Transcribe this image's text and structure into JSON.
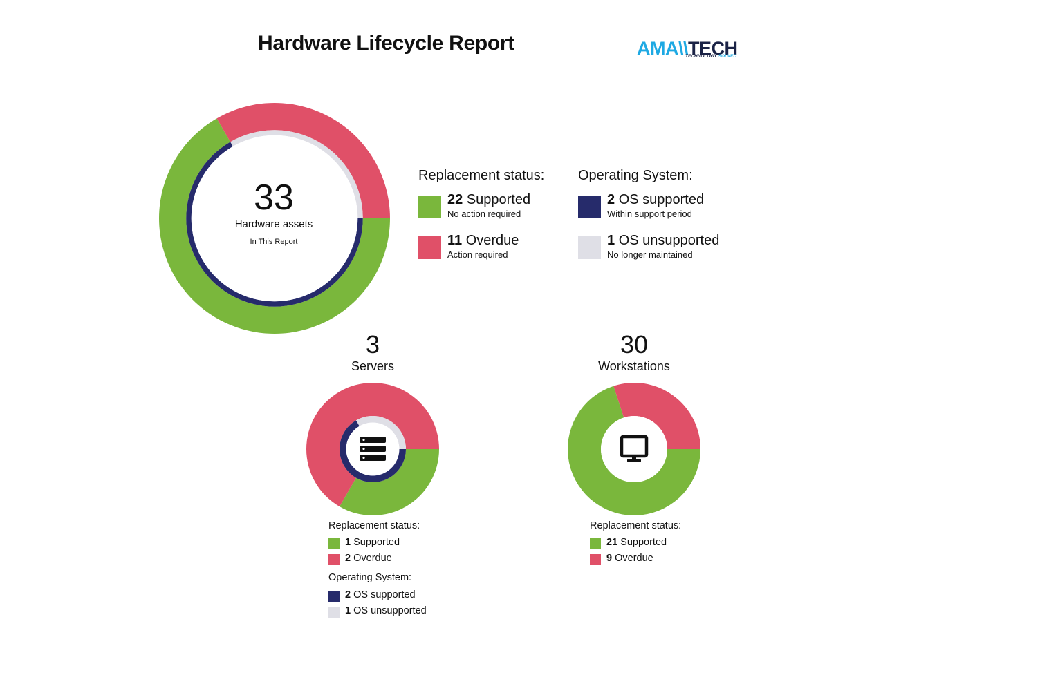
{
  "header": {
    "title": "Hardware Lifecycle Report",
    "logo": {
      "part1": "AMA\\\\",
      "part2": "TECH",
      "tagline_part1": "TECHNOLOGY",
      "tagline_part2": "SOLVED"
    }
  },
  "colors": {
    "supported": "#7ab73c",
    "overdue": "#e05068",
    "os_supported": "#262b6b",
    "os_unsupported": "#dfdfe6"
  },
  "chart_data": [
    {
      "type": "pie",
      "id": "overall",
      "center_value": "33",
      "center_label": "Hardware assets",
      "center_sublabel": "In This Report",
      "rings": [
        {
          "name": "Replacement status",
          "slices": [
            {
              "label": "Supported",
              "value": 22
            },
            {
              "label": "Overdue",
              "value": 11
            }
          ]
        },
        {
          "name": "Operating System",
          "slices": [
            {
              "label": "OS supported",
              "value": 2
            },
            {
              "label": "OS unsupported",
              "value": 1
            }
          ]
        }
      ]
    },
    {
      "type": "pie",
      "id": "servers",
      "count": "3",
      "label": "Servers",
      "icon": "server-icon",
      "rings": [
        {
          "name": "Replacement status",
          "slices": [
            {
              "label": "Supported",
              "value": 1
            },
            {
              "label": "Overdue",
              "value": 2
            }
          ]
        },
        {
          "name": "Operating System",
          "slices": [
            {
              "label": "OS supported",
              "value": 2
            },
            {
              "label": "OS unsupported",
              "value": 1
            }
          ]
        }
      ]
    },
    {
      "type": "pie",
      "id": "workstations",
      "count": "30",
      "label": "Workstations",
      "icon": "monitor-icon",
      "rings": [
        {
          "name": "Replacement status",
          "slices": [
            {
              "label": "Supported",
              "value": 21
            },
            {
              "label": "Overdue",
              "value": 9
            }
          ]
        }
      ]
    }
  ],
  "legend": {
    "replacement_heading": "Replacement status:",
    "os_heading": "Operating System:",
    "supported": {
      "count": "22",
      "label": "Supported",
      "desc": "No action required"
    },
    "overdue": {
      "count": "11",
      "label": "Overdue",
      "desc": "Action required"
    },
    "os_supported": {
      "count": "2",
      "label": "OS supported",
      "desc": "Within support period"
    },
    "os_unsupported": {
      "count": "1",
      "label": "OS unsupported",
      "desc": "No longer maintained"
    }
  },
  "servers_legend": {
    "replacement_heading": "Replacement status:",
    "supported": {
      "count": "1",
      "label": "Supported"
    },
    "overdue": {
      "count": "2",
      "label": "Overdue"
    },
    "os_heading": "Operating System:",
    "os_supported": {
      "count": "2",
      "label": "OS supported"
    },
    "os_unsupported": {
      "count": "1",
      "label": "OS unsupported"
    }
  },
  "workstations_legend": {
    "replacement_heading": "Replacement status:",
    "supported": {
      "count": "21",
      "label": "Supported"
    },
    "overdue": {
      "count": "9",
      "label": "Overdue"
    }
  }
}
